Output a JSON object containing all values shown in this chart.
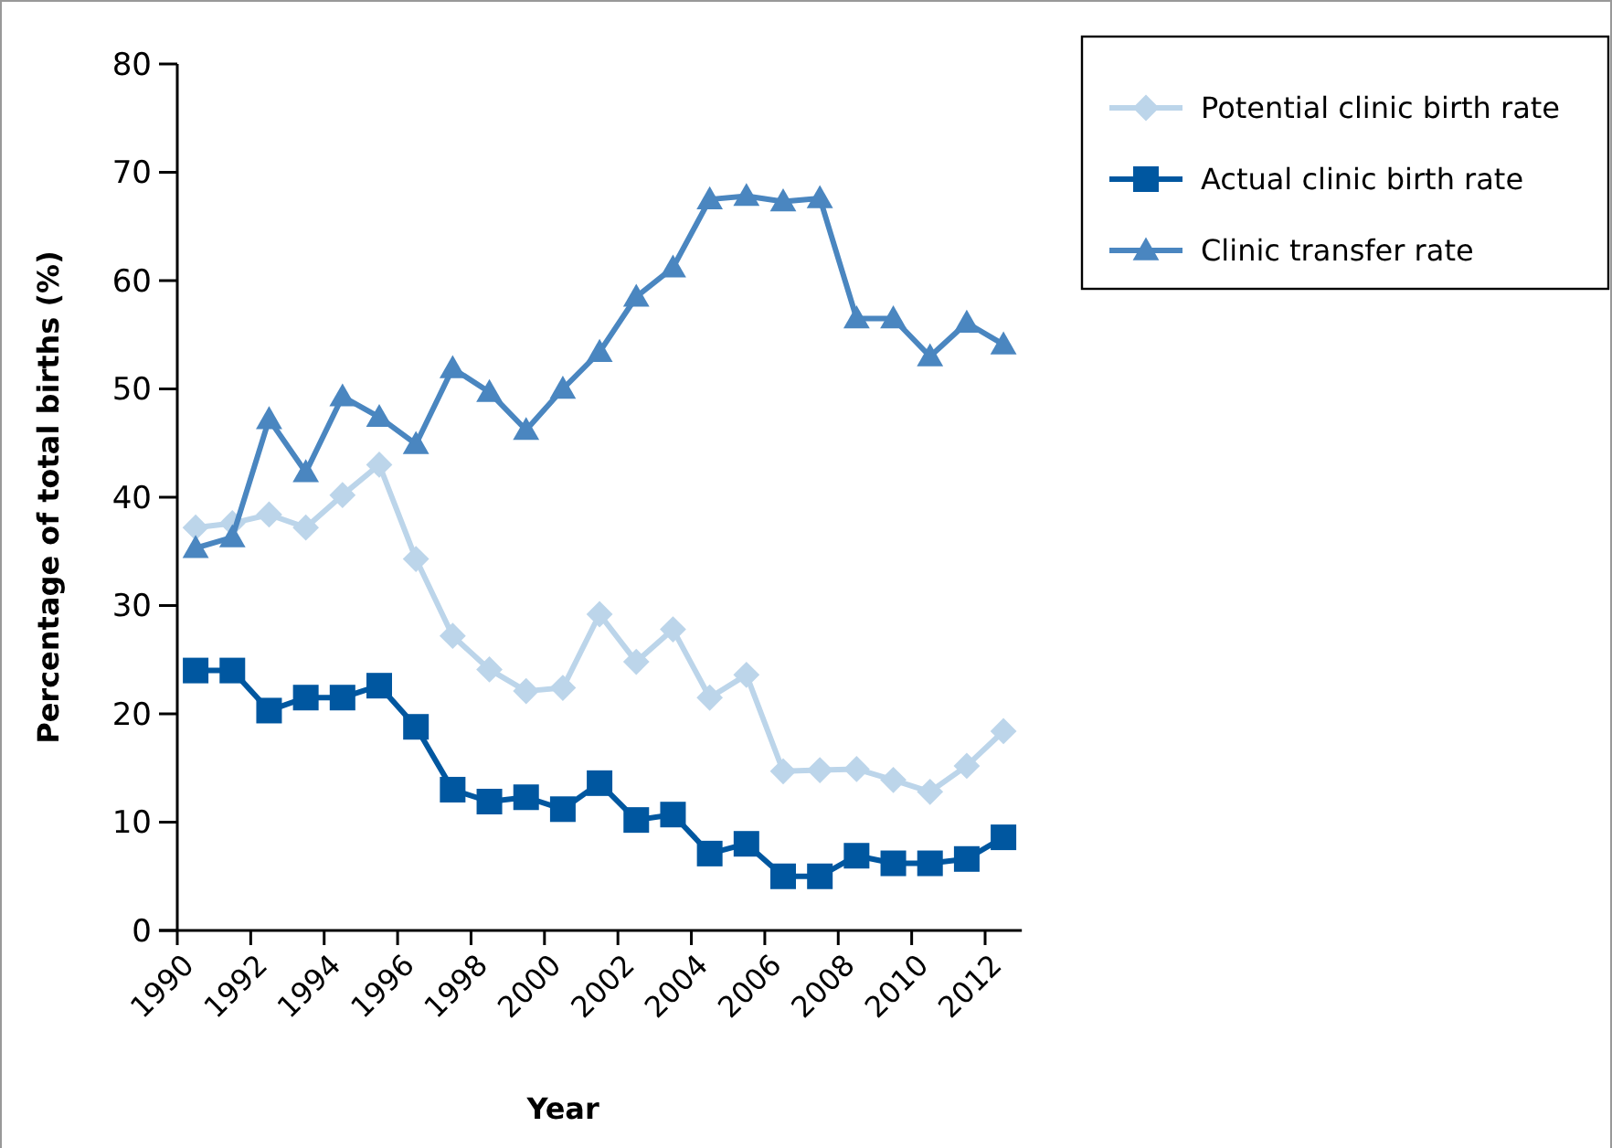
{
  "chart_data": {
    "type": "line",
    "xlabel": "Year",
    "ylabel": "Percentage of total births (%)",
    "x": [
      1990.5,
      1991.5,
      1992.5,
      1993.5,
      1994.5,
      1995.5,
      1996.5,
      1997.5,
      1998.5,
      1999.5,
      2000.5,
      2001.5,
      2002.5,
      2003.5,
      2004.5,
      2005.5,
      2006.5,
      2007.5,
      2008.5,
      2009.5,
      2010.5,
      2011.5,
      2012.5
    ],
    "xlim": [
      1989.5,
      2013
    ],
    "xticks": [
      1990,
      1992,
      1994,
      1996,
      1998,
      2000,
      2002,
      2004,
      2006,
      2008,
      2010,
      2012
    ],
    "ylim": [
      0,
      80
    ],
    "yticks": [
      0,
      10,
      20,
      30,
      40,
      50,
      60,
      70,
      80
    ],
    "grid": false,
    "legend": "top right",
    "series": [
      {
        "name": "Potential clinic birth rate",
        "color": "#bcd5ea",
        "marker": "diamond",
        "values": [
          37.2,
          37.6,
          38.4,
          37.2,
          40.2,
          43.0,
          34.3,
          27.2,
          24.1,
          22.1,
          22.4,
          29.2,
          24.8,
          27.8,
          21.5,
          23.6,
          14.7,
          14.8,
          14.9,
          13.9,
          12.8,
          15.2,
          18.4
        ]
      },
      {
        "name": "Actual clinic birth rate",
        "color": "#0057a0",
        "marker": "square",
        "values": [
          24.0,
          24.0,
          20.3,
          21.5,
          21.5,
          22.6,
          18.8,
          13.0,
          11.9,
          12.3,
          11.2,
          13.6,
          10.2,
          10.7,
          7.1,
          8.0,
          5.0,
          5.0,
          6.9,
          6.2,
          6.2,
          6.6,
          8.6
        ]
      },
      {
        "name": "Clinic transfer rate",
        "color": "#4a86c0",
        "marker": "triangle",
        "values": [
          35.3,
          36.3,
          47.2,
          42.3,
          49.3,
          47.4,
          44.9,
          51.9,
          49.7,
          46.2,
          50.0,
          53.4,
          58.5,
          61.2,
          67.5,
          67.8,
          67.3,
          67.6,
          56.5,
          56.5,
          53.0,
          56.1,
          54.1
        ]
      }
    ]
  }
}
